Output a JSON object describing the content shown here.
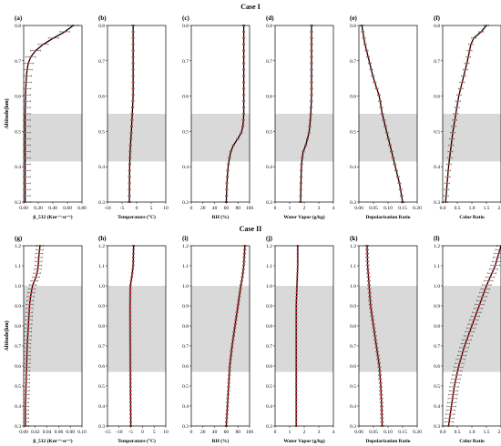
{
  "chart_data": [
    {
      "case": "Case I",
      "panels": [
        {
          "id": "(a)",
          "type": "line",
          "xlabel": "β_532  (Km⁻¹·sr⁻¹)",
          "xlim": [
            0,
            0.8
          ],
          "xticks": [
            "0.00",
            "0.20",
            "0.40",
            "0.60",
            "0.80"
          ],
          "ylim": [
            0.3,
            0.8
          ],
          "band": [
            0.415,
            0.55
          ],
          "err": 0.07,
          "profile": [
            [
              0.3,
              0.02
            ],
            [
              0.35,
              0.02
            ],
            [
              0.4,
              0.02
            ],
            [
              0.45,
              0.02
            ],
            [
              0.5,
              0.02
            ],
            [
              0.55,
              0.02
            ],
            [
              0.6,
              0.025
            ],
            [
              0.65,
              0.035
            ],
            [
              0.68,
              0.05
            ],
            [
              0.7,
              0.07
            ],
            [
              0.72,
              0.12
            ],
            [
              0.74,
              0.22
            ],
            [
              0.76,
              0.37
            ],
            [
              0.78,
              0.55
            ],
            [
              0.8,
              0.68
            ]
          ]
        },
        {
          "id": "(b)",
          "type": "line",
          "xlabel": "Temperature  (°C)",
          "xlim": [
            -10,
            10
          ],
          "xticks": [
            "-10",
            "-5",
            "0",
            "5",
            "10"
          ],
          "ylim": [
            0.3,
            0.8
          ],
          "band": [
            0.415,
            0.55
          ],
          "err": 0.4,
          "profile": [
            [
              0.3,
              -2.5
            ],
            [
              0.4,
              -2.4
            ],
            [
              0.45,
              -2.2
            ],
            [
              0.5,
              -1.8
            ],
            [
              0.55,
              -1.5
            ],
            [
              0.6,
              -1.2
            ],
            [
              0.7,
              -1.2
            ],
            [
              0.8,
              -1.2
            ]
          ]
        },
        {
          "id": "(c)",
          "type": "line",
          "xlabel": "RH  (%)",
          "xlim": [
            0,
            100
          ],
          "xticks": [
            "0",
            "20",
            "40",
            "60",
            "80",
            "100"
          ],
          "ylim": [
            0.3,
            0.8
          ],
          "band": [
            0.415,
            0.55
          ],
          "err": 2,
          "profile": [
            [
              0.3,
              60
            ],
            [
              0.35,
              61
            ],
            [
              0.4,
              63
            ],
            [
              0.44,
              67
            ],
            [
              0.46,
              72
            ],
            [
              0.48,
              80
            ],
            [
              0.5,
              87
            ],
            [
              0.52,
              89
            ],
            [
              0.55,
              90
            ],
            [
              0.6,
              90
            ],
            [
              0.7,
              90
            ],
            [
              0.8,
              90
            ]
          ]
        },
        {
          "id": "(d)",
          "type": "line",
          "xlabel": "Water Vapor  (g/kg)",
          "xlim": [
            0,
            4
          ],
          "xticks": [
            "0",
            "1",
            "2",
            "3",
            "4"
          ],
          "ylim": [
            0.3,
            0.8
          ],
          "band": [
            0.415,
            0.55
          ],
          "err": 0.08,
          "profile": [
            [
              0.3,
              1.75
            ],
            [
              0.4,
              1.8
            ],
            [
              0.44,
              1.9
            ],
            [
              0.46,
              2.1
            ],
            [
              0.5,
              2.35
            ],
            [
              0.55,
              2.45
            ],
            [
              0.6,
              2.5
            ],
            [
              0.7,
              2.5
            ],
            [
              0.8,
              2.5
            ]
          ]
        },
        {
          "id": "(e)",
          "type": "line",
          "xlabel": "Depolarization Ratio",
          "xlim": [
            0,
            0.2
          ],
          "xticks": [
            "0.00",
            "0.05",
            "0.10",
            "0.15",
            "0.20"
          ],
          "ylim": [
            0.3,
            0.8
          ],
          "band": [
            0.415,
            0.55
          ],
          "err": 0.005,
          "profile": [
            [
              0.3,
              0.15
            ],
            [
              0.35,
              0.14
            ],
            [
              0.4,
              0.125
            ],
            [
              0.45,
              0.11
            ],
            [
              0.5,
              0.095
            ],
            [
              0.55,
              0.08
            ],
            [
              0.6,
              0.07
            ],
            [
              0.65,
              0.05
            ],
            [
              0.7,
              0.035
            ],
            [
              0.75,
              0.02
            ],
            [
              0.8,
              0.01
            ]
          ]
        },
        {
          "id": "(f)",
          "type": "line",
          "xlabel": "Color Ratio",
          "xlim": [
            0,
            2
          ],
          "xticks": [
            "0.0",
            "0.5",
            "1.0",
            "1.5",
            "2.0"
          ],
          "ylim": [
            0.3,
            0.8
          ],
          "band": [
            0.415,
            0.55
          ],
          "err": 0.08,
          "profile": [
            [
              0.3,
              0.1
            ],
            [
              0.4,
              0.2
            ],
            [
              0.5,
              0.35
            ],
            [
              0.55,
              0.45
            ],
            [
              0.6,
              0.55
            ],
            [
              0.65,
              0.7
            ],
            [
              0.7,
              0.85
            ],
            [
              0.72,
              0.9
            ],
            [
              0.74,
              0.95
            ],
            [
              0.76,
              1.0
            ],
            [
              0.78,
              1.3
            ],
            [
              0.8,
              1.5
            ]
          ]
        }
      ]
    },
    {
      "case": "Case II",
      "panels": [
        {
          "id": "(g)",
          "type": "line",
          "xlabel": "β_532  (Km⁻¹·sr⁻¹)",
          "xlim": [
            0,
            0.1
          ],
          "xticks": [
            "0.00",
            "0.02",
            "0.04",
            "0.06",
            "0.08",
            "0.10"
          ],
          "ylim": [
            0.3,
            1.2
          ],
          "band": [
            0.57,
            1.0
          ],
          "err": 0.006,
          "profile": [
            [
              0.3,
              0.003
            ],
            [
              0.4,
              0.003
            ],
            [
              0.5,
              0.004
            ],
            [
              0.6,
              0.005
            ],
            [
              0.7,
              0.006
            ],
            [
              0.8,
              0.008
            ],
            [
              0.9,
              0.01
            ],
            [
              0.95,
              0.012
            ],
            [
              1.0,
              0.015
            ],
            [
              1.05,
              0.022
            ],
            [
              1.1,
              0.025
            ],
            [
              1.15,
              0.026
            ],
            [
              1.2,
              0.028
            ]
          ]
        },
        {
          "id": "(h)",
          "type": "line",
          "xlabel": "Temperature  (°C)",
          "xlim": [
            -15,
            10
          ],
          "xticks": [
            "-15",
            "-10",
            "-5",
            "0",
            "5",
            "10"
          ],
          "ylim": [
            0.3,
            1.2
          ],
          "band": [
            0.57,
            1.0
          ],
          "err": 0.4,
          "profile": [
            [
              0.3,
              -5
            ],
            [
              0.6,
              -5.2
            ],
            [
              0.9,
              -5.3
            ],
            [
              1.0,
              -5.2
            ],
            [
              1.05,
              -4.5
            ],
            [
              1.1,
              -4.0
            ],
            [
              1.2,
              -3.8
            ]
          ]
        },
        {
          "id": "(i)",
          "type": "line",
          "xlabel": "RH  (%)",
          "xlim": [
            0,
            100
          ],
          "xticks": [
            "0",
            "20",
            "40",
            "60",
            "80",
            "100"
          ],
          "ylim": [
            0.3,
            1.2
          ],
          "band": [
            0.57,
            1.0
          ],
          "err": 2,
          "profile": [
            [
              0.3,
              60
            ],
            [
              0.4,
              62
            ],
            [
              0.5,
              64
            ],
            [
              0.6,
              66
            ],
            [
              0.7,
              70
            ],
            [
              0.8,
              75
            ],
            [
              0.9,
              80
            ],
            [
              1.0,
              85
            ],
            [
              1.05,
              88
            ],
            [
              1.1,
              90
            ],
            [
              1.2,
              92
            ]
          ]
        },
        {
          "id": "(j)",
          "type": "line",
          "xlabel": "Water Vapor  (g/kg)",
          "xlim": [
            0,
            4
          ],
          "xticks": [
            "0",
            "1",
            "2",
            "3",
            "4"
          ],
          "ylim": [
            0.3,
            1.2
          ],
          "band": [
            0.57,
            1.0
          ],
          "err": 0.05,
          "profile": [
            [
              0.3,
              1.45
            ],
            [
              0.5,
              1.45
            ],
            [
              0.7,
              1.45
            ],
            [
              0.9,
              1.45
            ],
            [
              1.0,
              1.5
            ],
            [
              1.1,
              1.55
            ],
            [
              1.2,
              1.55
            ]
          ]
        },
        {
          "id": "(k)",
          "type": "line",
          "xlabel": "Depolarization Ratio",
          "xlim": [
            0,
            0.2
          ],
          "xticks": [
            "0.00",
            "0.05",
            "0.10",
            "0.15",
            "0.20"
          ],
          "ylim": [
            0.3,
            1.2
          ],
          "band": [
            0.57,
            1.0
          ],
          "err": 0.005,
          "profile": [
            [
              0.3,
              0.08
            ],
            [
              0.4,
              0.078
            ],
            [
              0.5,
              0.075
            ],
            [
              0.6,
              0.07
            ],
            [
              0.7,
              0.06
            ],
            [
              0.8,
              0.05
            ],
            [
              0.9,
              0.04
            ],
            [
              1.0,
              0.035
            ],
            [
              1.1,
              0.03
            ],
            [
              1.2,
              0.028
            ]
          ]
        },
        {
          "id": "(l)",
          "type": "line",
          "xlabel": "Color Ratio",
          "xlim": [
            0,
            2
          ],
          "xticks": [
            "0.0",
            "0.5",
            "1.0",
            "1.5",
            "2.0"
          ],
          "ylim": [
            0.3,
            1.2
          ],
          "band": [
            0.57,
            1.0
          ],
          "err": 0.15,
          "profile": [
            [
              0.3,
              0.2
            ],
            [
              0.4,
              0.3
            ],
            [
              0.5,
              0.4
            ],
            [
              0.6,
              0.55
            ],
            [
              0.7,
              0.75
            ],
            [
              0.8,
              1.0
            ],
            [
              0.9,
              1.25
            ],
            [
              1.0,
              1.5
            ],
            [
              1.05,
              1.65
            ],
            [
              1.1,
              1.8
            ],
            [
              1.15,
              1.9
            ],
            [
              1.2,
              2.0
            ]
          ]
        }
      ]
    }
  ],
  "y_axis_label": "Altitude(km)",
  "colors": {
    "band": "#d9d9d9",
    "points": "#e0302a",
    "line": "#000000",
    "error_bars": "#333333"
  }
}
